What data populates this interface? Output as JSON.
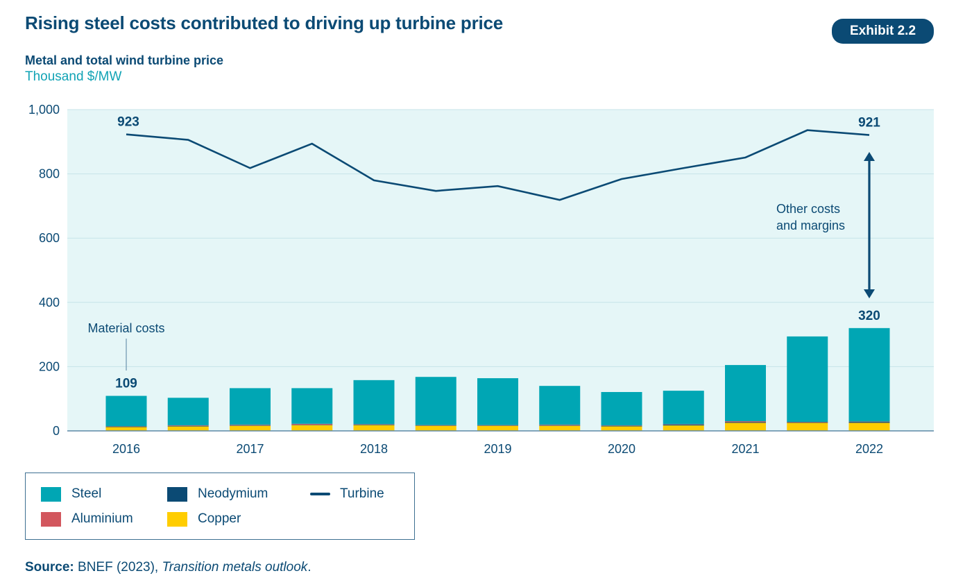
{
  "header": {
    "title": "Rising steel costs contributed to driving up turbine price",
    "badge": "Exhibit 2.2",
    "subtitle": "Metal and total wind turbine price",
    "unit": "Thousand $/MW"
  },
  "colors": {
    "steel": "#00a6b4",
    "aluminium": "#d2575e",
    "neodymium": "#0b4a74",
    "copper": "#ffcd00",
    "turbine": "#0b4a74",
    "plot_bg": "#e5f6f7",
    "grid": "#c6e3e8",
    "text": "#0b4a74",
    "unit_text": "#11a3b5"
  },
  "chart_data": {
    "type": "bar",
    "title": "Metal and total wind turbine price",
    "ylabel": "Thousand $/MW",
    "xlabel": "",
    "ylim": [
      0,
      1000
    ],
    "yticks": [
      0,
      200,
      400,
      600,
      800,
      1000
    ],
    "ytick_labels": [
      "0",
      "200",
      "400",
      "600",
      "800",
      "1,000"
    ],
    "grid": true,
    "periods": [
      "2016 H1",
      "2016 H2",
      "2017 H1",
      "2017 H2",
      "2018 H1",
      "2018 H2",
      "2019 H1",
      "2019 H2",
      "2020 H1",
      "2020 H2",
      "2021 H1",
      "2021 H2",
      "2022 H1"
    ],
    "x_tick_labels": [
      "2016",
      "",
      "2017",
      "",
      "2018",
      "",
      "2019",
      "",
      "2020",
      "",
      "2021",
      "",
      "2022"
    ],
    "stacked": true,
    "series": [
      {
        "name": "Copper",
        "key": "copper",
        "type": "bar",
        "values": [
          12,
          14,
          16,
          18,
          18,
          16,
          16,
          16,
          14,
          17,
          25,
          25,
          25
        ]
      },
      {
        "name": "Neodymium",
        "key": "neodymium",
        "type": "bar",
        "values": [
          1,
          1,
          1,
          1,
          2,
          1,
          1,
          1,
          2,
          3,
          2,
          2,
          3
        ]
      },
      {
        "name": "Aluminium",
        "key": "aluminium",
        "type": "bar",
        "values": [
          1,
          2,
          2,
          3,
          1,
          1,
          1,
          2,
          1,
          1,
          3,
          1,
          1
        ]
      },
      {
        "name": "Steel",
        "key": "steel",
        "type": "bar",
        "values": [
          95,
          86,
          114,
          111,
          137,
          150,
          146,
          121,
          104,
          104,
          175,
          266,
          291
        ]
      },
      {
        "name": "Turbine",
        "key": "turbine",
        "type": "line",
        "values": [
          923,
          906,
          818,
          894,
          780,
          747,
          762,
          719,
          784,
          818,
          851,
          936,
          921
        ]
      }
    ],
    "bar_totals": [
      109,
      103,
      133,
      133,
      158,
      168,
      164,
      140,
      121,
      125,
      205,
      294,
      320
    ],
    "data_labels": [
      {
        "series": "Turbine",
        "index": 0,
        "text": "923"
      },
      {
        "series": "Turbine",
        "index": 12,
        "text": "921"
      },
      {
        "series": "Material",
        "index": 0,
        "text": "109"
      },
      {
        "series": "Material",
        "index": 12,
        "text": "320"
      }
    ],
    "annotations": [
      {
        "text": "Material costs",
        "index": 0
      },
      {
        "text": "Other costs\nand margins",
        "index": 12,
        "arrow": "double-vertical between material total and turbine price"
      }
    ],
    "legend": {
      "placement": "bottom-left",
      "entries": [
        {
          "label": "Steel",
          "key": "steel",
          "kind": "box"
        },
        {
          "label": "Neodymium",
          "key": "neodymium",
          "kind": "box"
        },
        {
          "label": "Turbine",
          "key": "turbine",
          "kind": "line"
        },
        {
          "label": "Aluminium",
          "key": "aluminium",
          "kind": "box"
        },
        {
          "label": "Copper",
          "key": "copper",
          "kind": "box"
        }
      ]
    }
  },
  "source": {
    "label": "Source:",
    "text": "BNEF (2023), ",
    "italic": "Transition metals outlook",
    "end": "."
  }
}
